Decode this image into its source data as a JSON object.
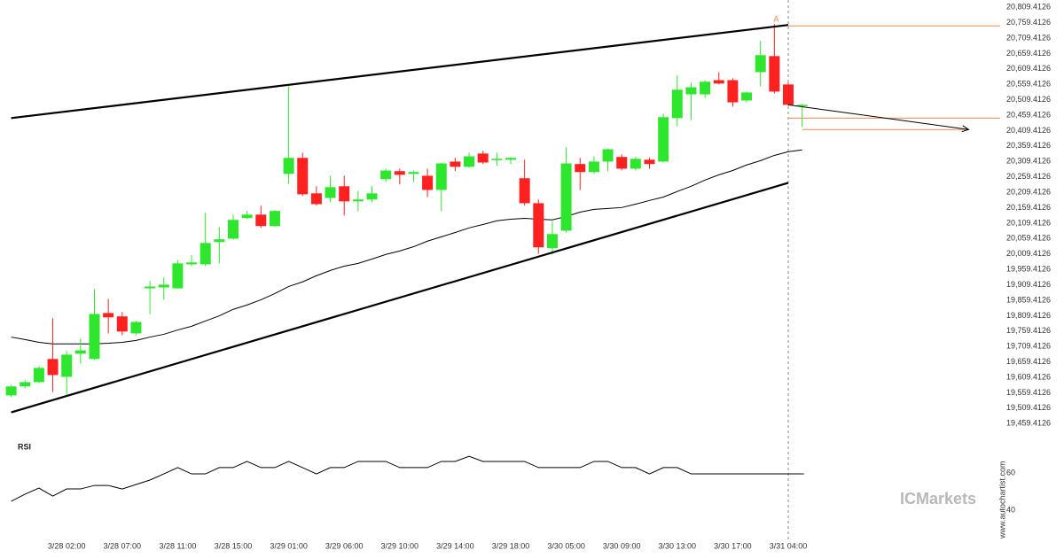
{
  "chart_data": [
    {
      "type": "candlestick",
      "categories": [
        null,
        null,
        null,
        null,
        "3/28 02:00",
        null,
        null,
        null,
        "3/28 07:00",
        null,
        null,
        null,
        "3/28 11:00",
        null,
        null,
        null,
        "3/28 15:00",
        null,
        null,
        null,
        "3/29 01:00",
        null,
        null,
        null,
        "3/29 06:00",
        null,
        null,
        null,
        "3/29 10:00",
        null,
        null,
        null,
        "3/29 14:00",
        null,
        null,
        null,
        "3/29 18:00",
        null,
        null,
        null,
        "3/30 05:00",
        null,
        null,
        null,
        "3/30 09:00",
        null,
        null,
        null,
        "3/30 13:00",
        null,
        null,
        null,
        "3/30 17:00",
        null,
        null,
        null,
        "3/31 04:00",
        null
      ],
      "open": [
        19551,
        19580,
        19594,
        19669,
        19611,
        19686,
        19669,
        19818,
        19807,
        19752,
        19898,
        19901,
        19898,
        19976,
        19976,
        20048,
        20059,
        20126,
        20137,
        20100,
        20269,
        20321,
        20206,
        20191,
        20229,
        20180,
        20186,
        20252,
        20278,
        20269,
        20263,
        20217,
        20309,
        20292,
        20335,
        20315,
        20315,
        20255,
        20174,
        20028,
        20085,
        20301,
        20275,
        20309,
        20324,
        20286,
        20315,
        20309,
        20450,
        20527,
        20527,
        20573,
        20573,
        20507,
        20599,
        20651,
        20559,
        20490
      ],
      "high": [
        19585,
        19600,
        19646,
        19801,
        19695,
        19735,
        19896,
        19864,
        19821,
        19792,
        19921,
        19933,
        19990,
        20005,
        20143,
        20097,
        20137,
        20149,
        20166,
        20152,
        20559,
        20338,
        20229,
        20263,
        20263,
        20214,
        20229,
        20286,
        20286,
        20280,
        20286,
        20306,
        20321,
        20338,
        20344,
        20338,
        20324,
        20315,
        20186,
        20114,
        20355,
        20321,
        20326,
        20352,
        20332,
        20324,
        20321,
        20464,
        20588,
        20565,
        20573,
        20599,
        20579,
        20536,
        20700,
        20755,
        20565,
        20496
      ],
      "low": [
        19545,
        19574,
        19591,
        19562,
        19548,
        19654,
        19666,
        19752,
        19746,
        19746,
        19815,
        19861,
        19896,
        19970,
        19970,
        19979,
        20056,
        20123,
        20094,
        20097,
        20237,
        20197,
        20166,
        20177,
        20134,
        20148,
        20177,
        20243,
        20235,
        20243,
        20194,
        20148,
        20278,
        20289,
        20301,
        20295,
        20301,
        20166,
        20010,
        20008,
        20079,
        20217,
        20269,
        20278,
        20280,
        20280,
        20286,
        20306,
        20424,
        20444,
        20516,
        20559,
        20487,
        20501,
        20553,
        20530,
        20490,
        20421
      ],
      "close": [
        19580,
        19594,
        19640,
        19617,
        19683,
        19697,
        19815,
        19804,
        19758,
        19789,
        19904,
        19910,
        19979,
        19982,
        20045,
        20057,
        20120,
        20137,
        20100,
        20149,
        20321,
        20203,
        20171,
        20226,
        20180,
        20186,
        20206,
        20280,
        20266,
        20275,
        20217,
        20303,
        20292,
        20326,
        20306,
        20318,
        20321,
        20174,
        20031,
        20074,
        20303,
        20275,
        20309,
        20349,
        20286,
        20318,
        20301,
        20453,
        20542,
        20550,
        20568,
        20562,
        20501,
        20533,
        20654,
        20536,
        20493,
        20493
      ],
      "up_color": "#2ee62e",
      "down_color": "#ff2020",
      "moving_average": {
        "color": "#000000",
        "values": [
          19740,
          19732,
          19723,
          19718,
          19718,
          19718,
          19718,
          19720,
          19723,
          19729,
          19740,
          19749,
          19763,
          19775,
          19792,
          19809,
          19830,
          19844,
          19861,
          19881,
          19904,
          19919,
          19939,
          19956,
          19970,
          19979,
          19993,
          20008,
          20019,
          20033,
          20051,
          20065,
          20079,
          20094,
          20105,
          20117,
          20122,
          20125,
          20122,
          20120,
          20131,
          20145,
          20154,
          20157,
          20160,
          20171,
          20183,
          20194,
          20212,
          20229,
          20249,
          20266,
          20280,
          20298,
          20312,
          20329,
          20341,
          20347
        ]
      },
      "trendlines": [
        {
          "start_index": 0,
          "start": 20450,
          "end_index": 56,
          "end": 20752,
          "color": "#000000"
        },
        {
          "start_index": 0,
          "start": 19496,
          "end_index": 56,
          "end": 20240,
          "color": "#000000"
        }
      ],
      "levels": [
        {
          "value": 20749,
          "from_index": 56,
          "color": "#f08a4b"
        },
        {
          "value": 20450,
          "from_index": 56,
          "color": "#f08a4b"
        },
        {
          "value": 20413,
          "from_index": 57,
          "to_index": 69,
          "color": "#f08a4b"
        }
      ],
      "forecast": {
        "start_index": 56,
        "start": 20493,
        "end_index": 69,
        "end": 20413,
        "color": "#000000"
      },
      "marker": {
        "label": "A",
        "index": 55,
        "divider_index": 56,
        "color": "#f08a4b"
      },
      "ylim": [
        19420,
        20830
      ],
      "yticks": [
        {
          "value": 19459.4126,
          "label": "19,459.4126"
        },
        {
          "value": 19509.4126,
          "label": "19,509.4126"
        },
        {
          "value": 19559.4126,
          "label": "19,559.4126"
        },
        {
          "value": 19609.4126,
          "label": "19,609.4126"
        },
        {
          "value": 19659.4126,
          "label": "19,659.4126"
        },
        {
          "value": 19709.4126,
          "label": "19,709.4126"
        },
        {
          "value": 19759.4126,
          "label": "19,759.4126"
        },
        {
          "value": 19809.4126,
          "label": "19,809.4126"
        },
        {
          "value": 19859.4126,
          "label": "19,859.4126"
        },
        {
          "value": 19909.4126,
          "label": "19,909.4126"
        },
        {
          "value": 19959.4126,
          "label": "19,959.4126"
        },
        {
          "value": 20009.4126,
          "label": "20,009.4126"
        },
        {
          "value": 20059.4126,
          "label": "20,059.4126"
        },
        {
          "value": 20109.4126,
          "label": "20,109.4126"
        },
        {
          "value": 20159.4126,
          "label": "20,159.4126"
        },
        {
          "value": 20209.4126,
          "label": "20,209.4126"
        },
        {
          "value": 20259.4126,
          "label": "20,259.4126"
        },
        {
          "value": 20309.4126,
          "label": "20,309.4126"
        },
        {
          "value": 20359.4126,
          "label": "20,359.4126"
        },
        {
          "value": 20409.4126,
          "label": "20,409.4126"
        },
        {
          "value": 20459.4126,
          "label": "20,459.4126"
        },
        {
          "value": 20509.4126,
          "label": "20,509.4126"
        },
        {
          "value": 20559.4126,
          "label": "20,559.4126"
        },
        {
          "value": 20609.4126,
          "label": "20,609.4126"
        },
        {
          "value": 20659.4126,
          "label": "20,659.4126"
        },
        {
          "value": 20709.4126,
          "label": "20,709.4126"
        },
        {
          "value": 20759.4126,
          "label": "20,759.4126"
        },
        {
          "value": 20809.4126,
          "label": "20,809.4126"
        }
      ]
    },
    {
      "type": "line",
      "title": "RSI",
      "color": "#000000",
      "values": [
        44.8,
        48.6,
        51.9,
        47.6,
        51.4,
        51.4,
        53.3,
        53.3,
        51.4,
        53.8,
        56.2,
        59.5,
        62.9,
        59.5,
        59.5,
        62.9,
        62.9,
        66.2,
        62.9,
        62.9,
        66.2,
        62.9,
        59.5,
        62.9,
        62.9,
        66.2,
        66.2,
        66.2,
        62.9,
        62.9,
        62.9,
        66.2,
        66.2,
        69.0,
        66.2,
        66.2,
        66.2,
        66.2,
        62.9,
        62.9,
        62.9,
        62.9,
        66.2,
        66.2,
        62.9,
        62.9,
        59.5,
        62.9,
        62.9,
        59.5,
        59.5,
        59.5,
        59.5,
        59.5,
        59.5,
        59.5,
        59.5,
        59.5
      ],
      "ylim": [
        30,
        75
      ],
      "yticks": [
        40,
        60
      ]
    }
  ],
  "brand": "ICMarkets",
  "watermark": "www.autochartist.com"
}
